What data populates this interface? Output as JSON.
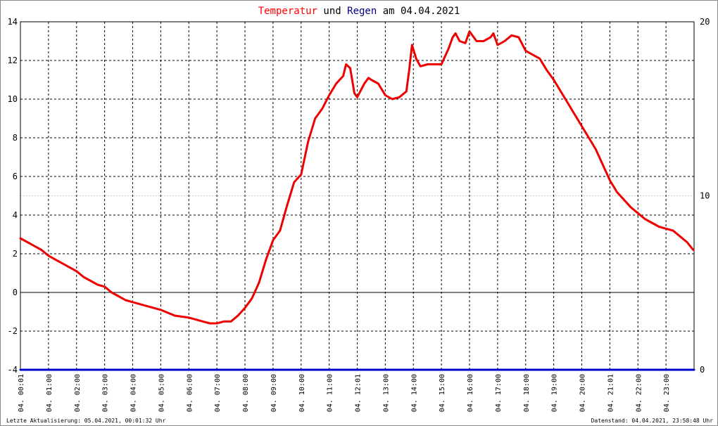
{
  "title": {
    "part1": "Temperatur",
    "part2": " und ",
    "part3": "Regen",
    "part4": " am 04.04.2021",
    "color1": "#ff0000",
    "color2": "#000000",
    "color3": "#000080",
    "color4": "#000000"
  },
  "footer": {
    "left": "Letzte Aktualisierung: 05.04.2021, 00:01:32 Uhr",
    "right": "Datenstand: 04.04.2021, 23:58:48 Uhr"
  },
  "colors": {
    "temperature": "#ee0000",
    "rain": "#0000cc",
    "grid": "#000000",
    "dashed_reference": "#c8c8c8"
  },
  "chart_data": {
    "type": "line",
    "title": "Temperatur und Regen am 04.04.2021",
    "xlim": [
      0,
      24
    ],
    "ylim_left": [
      -4,
      14
    ],
    "ylim_right": [
      0,
      20
    ],
    "yticks_left": [
      "-4",
      "-2",
      "0",
      "2",
      "4",
      "6",
      "8",
      "10",
      "12",
      "14"
    ],
    "yticks_right": [
      "0",
      "10",
      "20"
    ],
    "xticks": [
      "04. 00:01",
      "04. 01:00",
      "04. 02:00",
      "04. 03:00",
      "04. 04:00",
      "04. 05:00",
      "04. 06:00",
      "04. 07:00",
      "04. 08:00",
      "04. 09:00",
      "04. 10:00",
      "04. 11:00",
      "04. 12:01",
      "04. 13:00",
      "04. 14:00",
      "04. 15:00",
      "04. 16:00",
      "04. 17:00",
      "04. 18:00",
      "04. 19:00",
      "04. 20:00",
      "04. 21:01",
      "04. 22:00",
      "04. 23:00"
    ],
    "grid": true,
    "series": [
      {
        "name": "Temperatur",
        "axis": "left",
        "x": [
          0,
          0.25,
          0.5,
          0.75,
          1,
          1.25,
          1.5,
          1.75,
          2,
          2.25,
          2.5,
          2.75,
          3,
          3.25,
          3.5,
          3.75,
          4,
          4.5,
          5,
          5.5,
          6,
          6.5,
          6.75,
          7,
          7.25,
          7.5,
          7.75,
          8,
          8.25,
          8.5,
          8.75,
          9,
          9.25,
          9.5,
          9.75,
          10,
          10.25,
          10.5,
          10.75,
          11,
          11.25,
          11.5,
          11.6,
          11.75,
          11.9,
          12,
          12.25,
          12.4,
          12.5,
          12.75,
          13,
          13.25,
          13.5,
          13.75,
          13.85,
          13.95,
          14.1,
          14.25,
          14.5,
          14.75,
          15,
          15.25,
          15.4,
          15.5,
          15.65,
          15.85,
          16,
          16.25,
          16.5,
          16.75,
          16.85,
          17,
          17.25,
          17.5,
          17.75,
          18,
          18.25,
          18.5,
          18.75,
          19,
          19.25,
          19.5,
          19.75,
          20,
          20.25,
          20.5,
          20.75,
          21,
          21.25,
          21.5,
          21.75,
          22,
          22.25,
          22.5,
          22.75,
          23,
          23.25,
          23.5,
          23.75,
          23.97
        ],
        "y": [
          2.8,
          2.6,
          2.4,
          2.2,
          1.9,
          1.7,
          1.5,
          1.3,
          1.1,
          0.8,
          0.6,
          0.4,
          0.3,
          0.0,
          -0.2,
          -0.4,
          -0.5,
          -0.7,
          -0.9,
          -1.2,
          -1.3,
          -1.5,
          -1.6,
          -1.6,
          -1.5,
          -1.5,
          -1.2,
          -0.8,
          -0.3,
          0.5,
          1.7,
          2.7,
          3.2,
          4.5,
          5.7,
          6.1,
          7.8,
          9.0,
          9.5,
          10.2,
          10.8,
          11.2,
          11.8,
          11.6,
          10.3,
          10.1,
          10.8,
          11.1,
          11.0,
          10.8,
          10.2,
          10.0,
          10.1,
          10.4,
          11.5,
          12.8,
          12.1,
          11.7,
          11.8,
          11.8,
          11.8,
          12.6,
          13.2,
          13.4,
          13.0,
          12.9,
          13.5,
          13.0,
          13.0,
          13.2,
          13.4,
          12.8,
          13.0,
          13.3,
          13.2,
          12.5,
          12.3,
          12.1,
          11.5,
          11.0,
          10.4,
          9.8,
          9.2,
          8.6,
          8.0,
          7.4,
          6.6,
          5.8,
          5.2,
          4.8,
          4.4,
          4.1,
          3.8,
          3.6,
          3.4,
          3.3,
          3.2,
          2.9,
          2.6,
          2.2
        ]
      },
      {
        "name": "Regen",
        "axis": "right",
        "x": [
          0,
          24
        ],
        "y": [
          0,
          0
        ]
      }
    ]
  }
}
